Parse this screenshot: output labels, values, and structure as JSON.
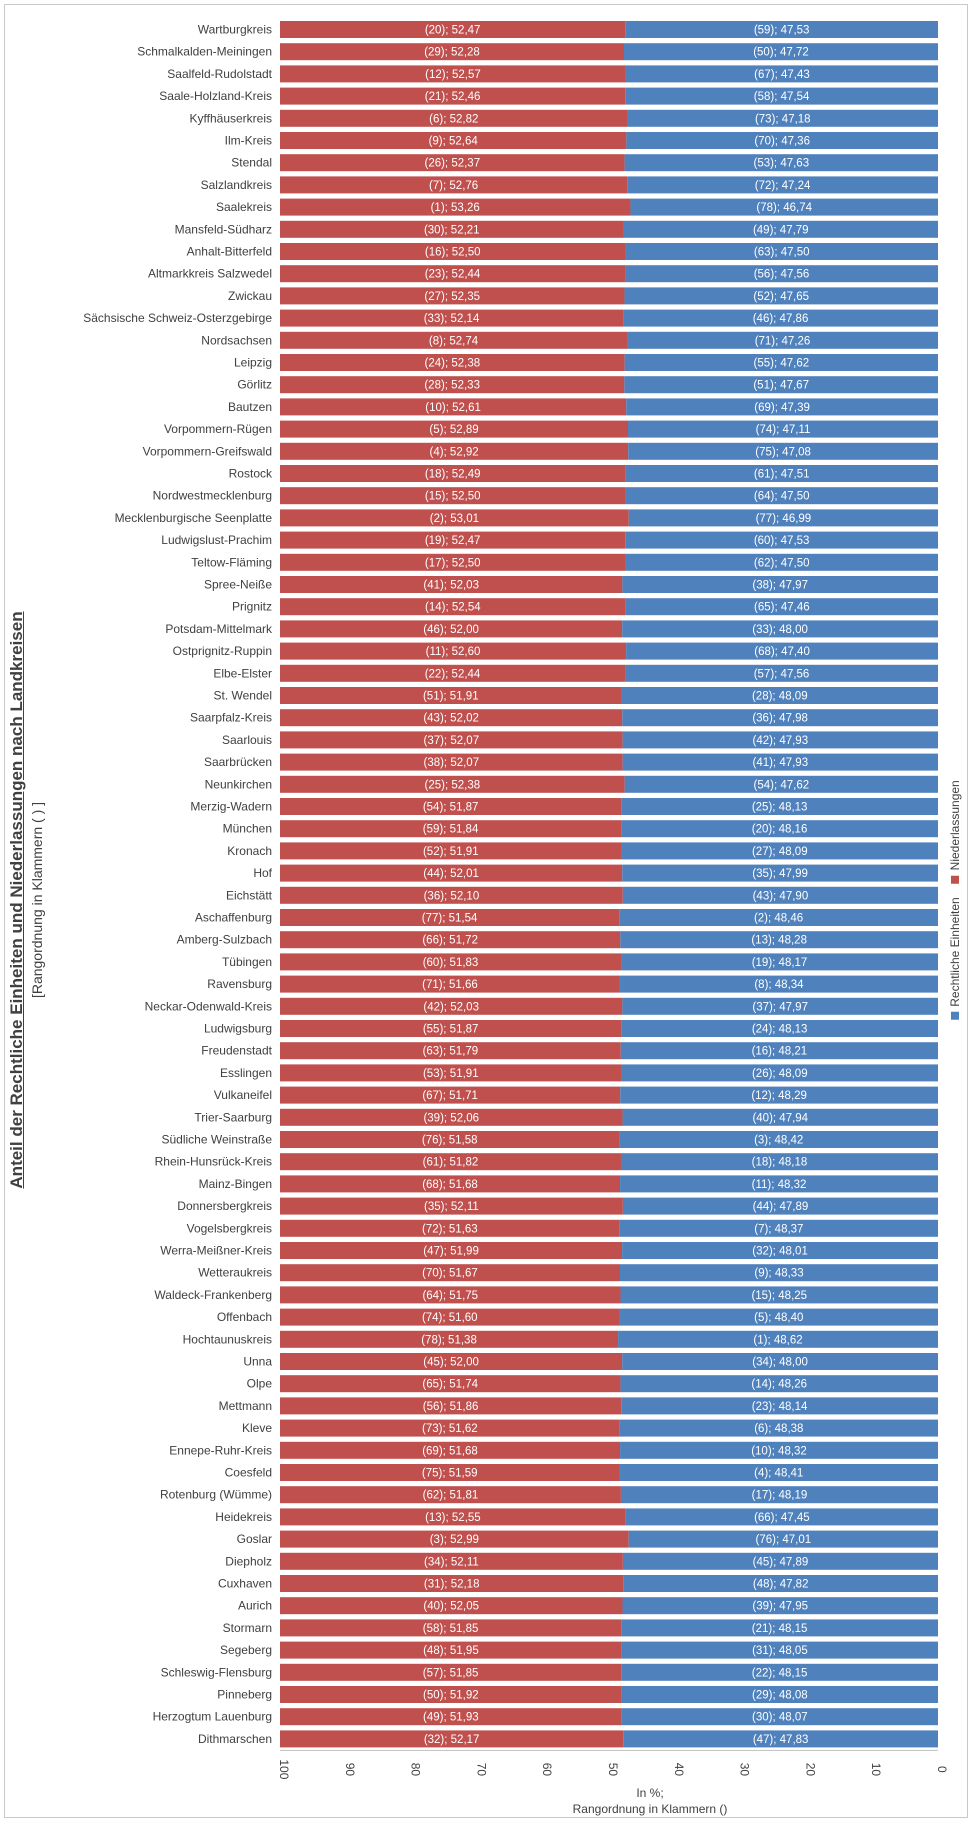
{
  "chart_data": {
    "type": "bar",
    "title": "Anteil der Rechtliche Einheiten und Niederlassungen nach Landkreisen",
    "subtitle": "[Rangordnung in Klammern ( ) ]",
    "xlabel": "In %;\nRangordnung in Klammern ()",
    "xlim": [
      100,
      0
    ],
    "xticks": [
      "100",
      "90",
      "80",
      "70",
      "60",
      "50",
      "40",
      "30",
      "20",
      "10",
      "0"
    ],
    "legend": "right",
    "series": [
      {
        "name": "Niederlassungen",
        "color": "#c0504d"
      },
      {
        "name": "Rechtliche Einheiten",
        "color": "#4f81bd"
      }
    ],
    "categories": [
      "Wartburgkreis",
      "Schmalkalden-Meiningen",
      "Saalfeld-Rudolstadt",
      "Saale-Holzland-Kreis",
      "Kyffhäuserkreis",
      "Ilm-Kreis",
      "Stendal",
      "Salzlandkreis",
      "Saalekreis",
      "Mansfeld-Südharz",
      "Anhalt-Bitterfeld",
      "Altmarkkreis Salzwedel",
      "Zwickau",
      "Sächsische Schweiz-Osterzgebirge",
      "Nordsachsen",
      "Leipzig",
      "Görlitz",
      "Bautzen",
      "Vorpommern-Rügen",
      "Vorpommern-Greifswald",
      "Rostock",
      "Nordwestmecklenburg",
      "Mecklenburgische Seenplatte",
      "Ludwigslust-Prachim",
      "Teltow-Fläming",
      "Spree-Neiße",
      "Prignitz",
      "Potsdam-Mittelmark",
      "Ostprignitz-Ruppin",
      "Elbe-Elster",
      "St. Wendel",
      "Saarpfalz-Kreis",
      "Saarlouis",
      "Saarbrücken",
      "Neunkirchen",
      "Merzig-Wadern",
      "München",
      "Kronach",
      "Hof",
      "Eichstätt",
      "Aschaffenburg",
      "Amberg-Sulzbach",
      "Tübingen",
      "Ravensburg",
      "Neckar-Odenwald-Kreis",
      "Ludwigsburg",
      "Freudenstadt",
      "Esslingen",
      "Vulkaneifel",
      "Trier-Saarburg",
      "Südliche Weinstraße",
      "Rhein-Hunsrück-Kreis",
      "Mainz-Bingen",
      "Donnersbergkreis",
      "Vogelsbergkreis",
      "Werra-Meißner-Kreis",
      "Wetteraukreis",
      "Waldeck-Frankenberg",
      "Offenbach",
      "Hochtaunuskreis",
      "Unna",
      "Olpe",
      "Mettmann",
      "Kleve",
      "Ennepe-Ruhr-Kreis",
      "Coesfeld",
      "Rotenburg (Wümme)",
      "Heidekreis",
      "Goslar",
      "Diepholz",
      "Cuxhaven",
      "Aurich",
      "Stormarn",
      "Segeberg",
      "Schleswig-Flensburg",
      "Pinneberg",
      "Herzogtum Lauenburg",
      "Dithmarschen"
    ],
    "niederlassungen": [
      52.47,
      52.28,
      52.57,
      52.46,
      52.82,
      52.64,
      52.37,
      52.76,
      53.26,
      52.21,
      52.5,
      52.44,
      52.35,
      52.14,
      52.74,
      52.38,
      52.33,
      52.61,
      52.89,
      52.92,
      52.49,
      52.5,
      53.01,
      52.47,
      52.5,
      52.03,
      52.54,
      52.0,
      52.6,
      52.44,
      51.91,
      52.02,
      52.07,
      52.07,
      52.38,
      51.87,
      51.84,
      51.91,
      52.01,
      52.1,
      51.54,
      51.72,
      51.83,
      51.66,
      52.03,
      51.87,
      51.79,
      51.91,
      51.71,
      52.06,
      51.58,
      51.82,
      51.68,
      52.11,
      51.63,
      51.99,
      51.67,
      51.75,
      51.6,
      51.38,
      52.0,
      51.74,
      51.86,
      51.62,
      51.68,
      51.59,
      51.81,
      52.55,
      52.99,
      52.11,
      52.18,
      52.05,
      51.85,
      51.95,
      51.85,
      51.92,
      51.93,
      52.17
    ],
    "niederlassungen_labels": [
      "(20); 52,47",
      "(29); 52,28",
      "(12); 52,57",
      "(21); 52,46",
      "(6); 52,82",
      "(9); 52,64",
      "(26); 52,37",
      "(7); 52,76",
      "(1); 53,26",
      "(30); 52,21",
      "(16); 52,50",
      "(23); 52,44",
      "(27); 52,35",
      "(33); 52,14",
      "(8); 52,74",
      "(24); 52,38",
      "(28); 52,33",
      "(10); 52,61",
      "(5); 52,89",
      "(4); 52,92",
      "(18); 52,49",
      "(15); 52,50",
      "(2); 53,01",
      "(19); 52,47",
      "(17); 52,50",
      "(41); 52,03",
      "(14); 52,54",
      "(46); 52,00",
      "(11); 52,60",
      "(22); 52,44",
      "(51); 51,91",
      "(43); 52,02",
      "(37); 52,07",
      "(38); 52,07",
      "(25); 52,38",
      "(54); 51,87",
      "(59); 51,84",
      "(52); 51,91",
      "(44); 52,01",
      "(36); 52,10",
      "(77); 51,54",
      "(66); 51,72",
      "(60); 51,83",
      "(71); 51,66",
      "(42); 52,03",
      "(55); 51,87",
      "(63); 51,79",
      "(53); 51,91",
      "(67); 51,71",
      "(39); 52,06",
      "(76); 51,58",
      "(61); 51,82",
      "(68); 51,68",
      "(35); 52,11",
      "(72); 51,63",
      "(47); 51,99",
      "(70); 51,67",
      "(64); 51,75",
      "(74); 51,60",
      "(78); 51,38",
      "(45); 52,00",
      "(65); 51,74",
      "(56); 51,86",
      "(73); 51,62",
      "(69); 51,68",
      "(75); 51,59",
      "(62); 51,81",
      "(13); 52,55",
      "(3); 52,99",
      "(34); 52,11",
      "(31); 52,18",
      "(40); 52,05",
      "(58); 51,85",
      "(48); 51,95",
      "(57); 51,85",
      "(50); 51,92",
      "(49); 51,93",
      "(32); 52,17"
    ],
    "rechtliche_einheiten": [
      47.53,
      47.72,
      47.43,
      47.54,
      47.18,
      47.36,
      47.63,
      47.24,
      46.74,
      47.79,
      47.5,
      47.56,
      47.65,
      47.86,
      47.26,
      47.62,
      47.67,
      47.39,
      47.11,
      47.08,
      47.51,
      47.5,
      46.99,
      47.53,
      47.5,
      47.97,
      47.46,
      48.0,
      47.4,
      47.56,
      48.09,
      47.98,
      47.93,
      47.93,
      47.62,
      48.13,
      48.16,
      48.09,
      47.99,
      47.9,
      48.46,
      48.28,
      48.17,
      48.34,
      47.97,
      48.13,
      48.21,
      48.09,
      48.29,
      47.94,
      48.42,
      48.18,
      48.32,
      47.89,
      48.37,
      48.01,
      48.33,
      48.25,
      48.4,
      48.62,
      48.0,
      48.26,
      48.14,
      48.38,
      48.32,
      48.41,
      48.19,
      47.45,
      47.01,
      47.89,
      47.82,
      47.95,
      48.15,
      48.05,
      48.15,
      48.08,
      48.07,
      47.83
    ],
    "rechtliche_einheiten_labels": [
      "(59); 47,53",
      "(50); 47,72",
      "(67); 47,43",
      "(58); 47,54",
      "(73); 47,18",
      "(70); 47,36",
      "(53); 47,63",
      "(72); 47,24",
      "(78); 46,74",
      "(49); 47,79",
      "(63); 47,50",
      "(56); 47,56",
      "(52); 47,65",
      "(46); 47,86",
      "(71); 47,26",
      "(55); 47,62",
      "(51); 47,67",
      "(69); 47,39",
      "(74); 47,11",
      "(75); 47,08",
      "(61); 47,51",
      "(64); 47,50",
      "(77); 46,99",
      "(60); 47,53",
      "(62); 47,50",
      "(38); 47,97",
      "(65); 47,46",
      "(33); 48,00",
      "(68); 47,40",
      "(57); 47,56",
      "(28); 48,09",
      "(36); 47,98",
      "(42); 47,93",
      "(41); 47,93",
      "(54); 47,62",
      "(25); 48,13",
      "(20); 48,16",
      "(27); 48,09",
      "(35); 47,99",
      "(43); 47,90",
      "(2); 48,46",
      "(13); 48,28",
      "(19); 48,17",
      "(8); 48,34",
      "(37); 47,97",
      "(24); 48,13",
      "(16); 48,21",
      "(26); 48,09",
      "(12); 48,29",
      "(40); 47,94",
      "(3); 48,42",
      "(18); 48,18",
      "(11); 48,32",
      "(44); 47,89",
      "(7); 48,37",
      "(32); 48,01",
      "(9); 48,33",
      "(15); 48,25",
      "(5); 48,40",
      "(1); 48,62",
      "(34); 48,00",
      "(14); 48,26",
      "(23); 48,14",
      "(6); 48,38",
      "(10); 48,32",
      "(4); 48,41",
      "(17); 48,19",
      "(66); 47,45",
      "(76); 47,01",
      "(45); 47,89",
      "(48); 47,82",
      "(39); 47,95",
      "(21); 48,15",
      "(31); 48,05",
      "(22); 48,15",
      "(29); 48,08",
      "(30); 48,07",
      "(47); 47,83"
    ]
  }
}
